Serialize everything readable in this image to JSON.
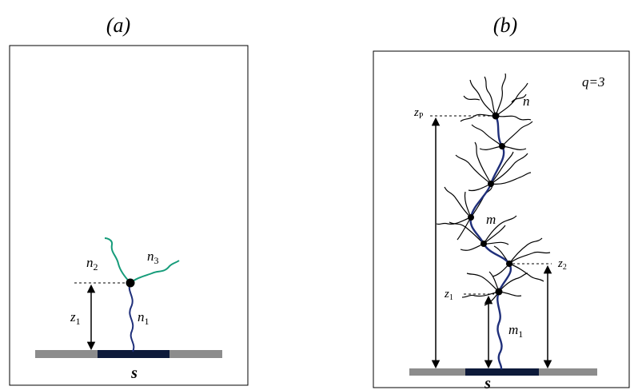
{
  "panel_a": {
    "title": "(a)",
    "labels": {
      "n1": "n",
      "n1_sub": "1",
      "n2": "n",
      "n2_sub": "2",
      "n3": "n",
      "n3_sub": "3",
      "z1": "z",
      "z1_sub": "1",
      "surface": "s"
    }
  },
  "panel_b": {
    "title": "(b)",
    "labels": {
      "q": "q=3",
      "n": "n",
      "m": "m",
      "m1": "m",
      "m1_sub": "1",
      "zp": "z",
      "zp_sub": "P",
      "z2": "z",
      "z2_sub": "2",
      "z1": "z",
      "z1_sub": "1",
      "surface": "s"
    }
  },
  "colors": {
    "frame": "#000000",
    "surface": "#8c8c8c",
    "graft_patch": "#0d1a3a",
    "backbone": "#1f2f7a",
    "side_chain_a": "#169c7a",
    "branch": "#000000"
  }
}
